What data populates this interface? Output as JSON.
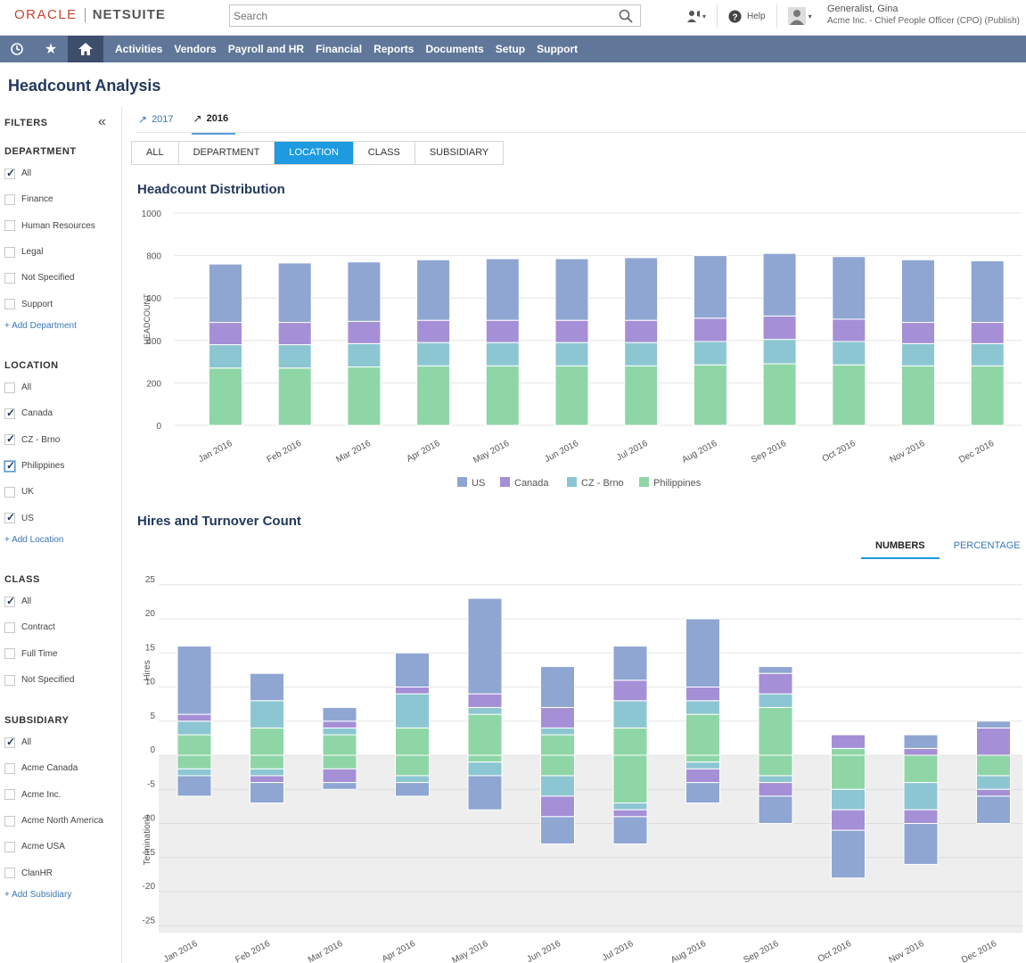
{
  "header": {
    "logo_oracle": "ORACLE",
    "logo_netsuite": "NETSUITE",
    "search_placeholder": "Search",
    "help_label": "Help",
    "user_name": "Generalist, Gina",
    "user_role": "Acme Inc. - Chief People Officer (CPO) (Publish)"
  },
  "nav": {
    "items": [
      "Activities",
      "Vendors",
      "Payroll and HR",
      "Financial",
      "Reports",
      "Documents",
      "Setup",
      "Support"
    ]
  },
  "page": {
    "title": "Headcount Analysis"
  },
  "filters": {
    "heading": "FILTERS",
    "department": {
      "heading": "DEPARTMENT",
      "items": [
        {
          "label": "All",
          "checked": true
        },
        {
          "label": "Finance",
          "checked": false
        },
        {
          "label": "Human Resources",
          "checked": false
        },
        {
          "label": "Legal",
          "checked": false
        },
        {
          "label": "Not Specified",
          "checked": false
        },
        {
          "label": "Support",
          "checked": false
        }
      ],
      "add": "+ Add Department"
    },
    "location": {
      "heading": "LOCATION",
      "items": [
        {
          "label": "All",
          "checked": false
        },
        {
          "label": "Canada",
          "checked": true
        },
        {
          "label": "CZ - Brno",
          "checked": true
        },
        {
          "label": "Philippines",
          "checked": true
        },
        {
          "label": "UK",
          "checked": false
        },
        {
          "label": "US",
          "checked": true
        }
      ],
      "add": "+ Add Location"
    },
    "class": {
      "heading": "CLASS",
      "items": [
        {
          "label": "All",
          "checked": true
        },
        {
          "label": "Contract",
          "checked": false
        },
        {
          "label": "Full Time",
          "checked": false
        },
        {
          "label": "Not Specified",
          "checked": false
        }
      ]
    },
    "subsidiary": {
      "heading": "SUBSIDIARY",
      "items": [
        {
          "label": "All",
          "checked": true
        },
        {
          "label": "Acme Canada",
          "checked": false
        },
        {
          "label": "Acme Inc.",
          "checked": false
        },
        {
          "label": "Acme North America",
          "checked": false
        },
        {
          "label": "Acme USA",
          "checked": false
        },
        {
          "label": "ClanHR",
          "checked": false
        }
      ],
      "add": "+ Add Subsidiary"
    }
  },
  "year_tabs": [
    "2017",
    "2016"
  ],
  "segment_tabs": [
    "ALL",
    "DEPARTMENT",
    "LOCATION",
    "CLASS",
    "SUBSIDIARY"
  ],
  "mode_tabs": [
    "NUMBERS",
    "PERCENTAGE"
  ],
  "colors": {
    "US": "#8fa6d2",
    "Canada": "#a58fd6",
    "CZ - Brno": "#8cc6d2",
    "Philippines": "#8fd6a6",
    "nav": "#607799",
    "accent": "#1e9be0"
  },
  "chart_data": [
    {
      "type": "bar",
      "title": "Headcount Distribution",
      "ylabel": "HEADCOUNT",
      "ylim": [
        0,
        1000
      ],
      "yticks": [
        0,
        200,
        400,
        600,
        800,
        1000
      ],
      "stacked": true,
      "legend": "bottom",
      "categories": [
        "Jan 2016",
        "Feb 2016",
        "Mar 2016",
        "Apr 2016",
        "May 2016",
        "Jun 2016",
        "Jul 2016",
        "Aug 2016",
        "Sep 2016",
        "Oct 2016",
        "Nov 2016",
        "Dec 2016"
      ],
      "series": [
        {
          "name": "Philippines",
          "values": [
            270,
            270,
            275,
            280,
            280,
            280,
            280,
            285,
            290,
            285,
            280,
            280
          ]
        },
        {
          "name": "CZ - Brno",
          "values": [
            110,
            110,
            110,
            110,
            110,
            110,
            110,
            110,
            115,
            110,
            105,
            105
          ]
        },
        {
          "name": "Canada",
          "values": [
            105,
            105,
            105,
            105,
            105,
            105,
            105,
            110,
            110,
            105,
            100,
            100
          ]
        },
        {
          "name": "US",
          "values": [
            275,
            280,
            280,
            285,
            290,
            290,
            295,
            295,
            295,
            295,
            295,
            290
          ]
        }
      ]
    },
    {
      "type": "bar",
      "title": "Hires and Turnover Count",
      "ylabel_top": "Hires",
      "ylabel_bottom": "Terminations",
      "ylim": [
        -25,
        25
      ],
      "yticks": [
        25,
        20,
        15,
        10,
        5,
        0,
        -5,
        -10,
        -15,
        -20,
        -25
      ],
      "stacked": true,
      "categories": [
        "Jan 2016",
        "Feb 2016",
        "Mar 2016",
        "Apr 2016",
        "May 2016",
        "Jun 2016",
        "Jul 2016",
        "Aug 2016",
        "Sep 2016",
        "Oct 2016",
        "Nov 2016",
        "Dec 2016"
      ],
      "series": [
        {
          "name": "Philippines",
          "hires": [
            3,
            4,
            3,
            4,
            6,
            3,
            4,
            6,
            7,
            1,
            0,
            0
          ],
          "terminations": [
            2,
            2,
            2,
            3,
            1,
            3,
            7,
            1,
            3,
            5,
            4,
            3
          ]
        },
        {
          "name": "CZ - Brno",
          "hires": [
            2,
            4,
            1,
            5,
            1,
            1,
            4,
            2,
            2,
            0,
            0,
            0
          ],
          "terminations": [
            1,
            1,
            0,
            1,
            2,
            3,
            1,
            1,
            1,
            3,
            4,
            2
          ]
        },
        {
          "name": "Canada",
          "hires": [
            1,
            0,
            1,
            1,
            2,
            3,
            3,
            2,
            3,
            2,
            1,
            4
          ],
          "terminations": [
            0,
            1,
            2,
            0,
            0,
            3,
            1,
            2,
            2,
            3,
            2,
            1
          ]
        },
        {
          "name": "US",
          "hires": [
            10,
            4,
            2,
            5,
            14,
            6,
            5,
            10,
            1,
            0,
            2,
            1
          ],
          "terminations": [
            3,
            3,
            1,
            2,
            5,
            4,
            4,
            3,
            4,
            7,
            6,
            4
          ]
        }
      ]
    }
  ]
}
